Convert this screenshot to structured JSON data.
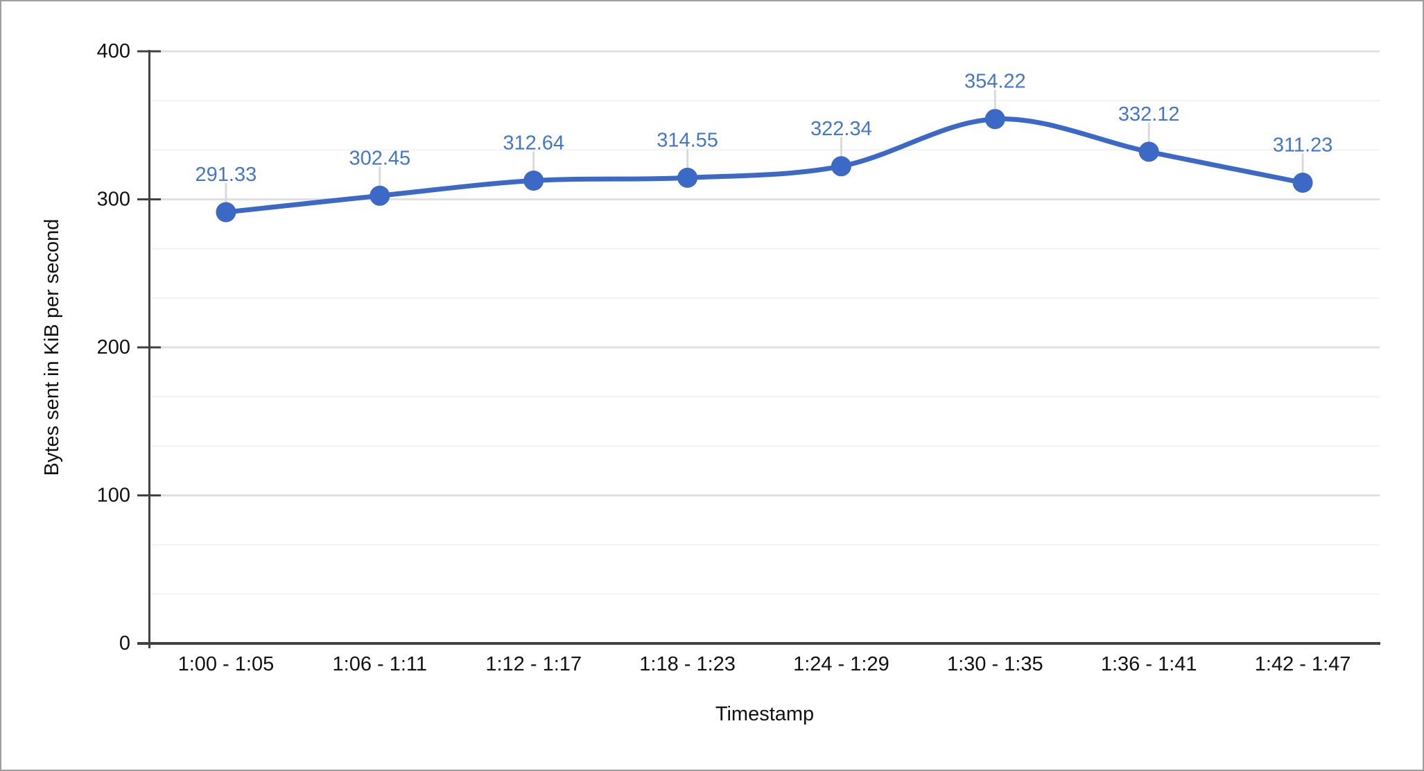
{
  "chart_data": {
    "type": "line",
    "title": "",
    "xlabel": "Timestamp",
    "ylabel": "Bytes sent in KiB per second",
    "categories": [
      "1:00 - 1:05",
      "1:06 - 1:11",
      "1:12 - 1:17",
      "1:18 - 1:23",
      "1:24 - 1:29",
      "1:30 - 1:35",
      "1:36 - 1:41",
      "1:42 - 1:47"
    ],
    "values": [
      291.33,
      302.45,
      312.64,
      314.55,
      322.34,
      354.22,
      332.12,
      311.23
    ],
    "data_labels": [
      "291.33",
      "302.45",
      "312.64",
      "314.55",
      "322.34",
      "354.22",
      "332.12",
      "311.23"
    ],
    "ylim": [
      0,
      400
    ],
    "y_ticks": [
      0,
      100,
      200,
      300,
      400
    ],
    "minor_gridlines_per_major": 3,
    "grid": "on",
    "legend_position": "none",
    "line_smooth": true
  },
  "colors": {
    "series": "#3c69c6",
    "data_label": "#4476cb",
    "axis": "#424242",
    "grid_major": "#e0e0e0",
    "grid_minor": "#f2f2f2",
    "label_connector": "#dadada",
    "text": "#111111",
    "background": "#ffffff",
    "frame_border": "#9e9e9e"
  }
}
